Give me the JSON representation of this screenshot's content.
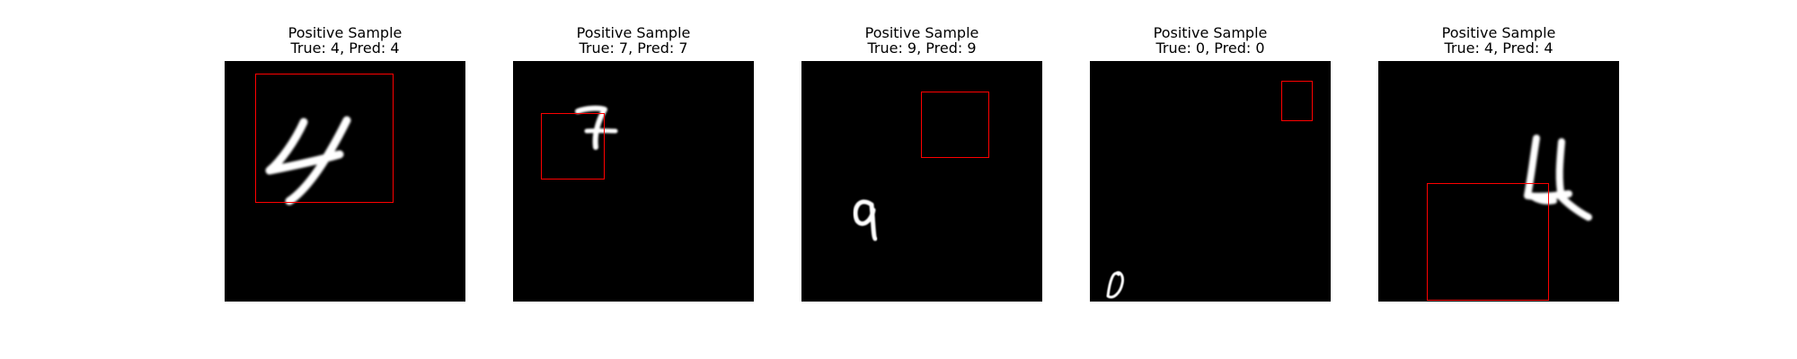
{
  "samples": [
    {
      "title": "Positive Sample",
      "subtitle": "True: 4, Pred: 4",
      "digit": "4-digit"
    },
    {
      "title": "Positive Sample",
      "subtitle": "True: 7, Pred: 7",
      "digit": "7-digit"
    },
    {
      "title": "Positive Sample",
      "subtitle": "True: 9, Pred: 9",
      "digit": "9-digit"
    },
    {
      "title": "Positive Sample",
      "subtitle": "True: 0, Pred: 0",
      "digit": "0-digit"
    },
    {
      "title": "Positive Sample",
      "subtitle": "True: 4, Pred: 4",
      "digit": "4-digit"
    }
  ],
  "colors": {
    "background": "#000000",
    "stroke": "#ffffff",
    "box": "#ff0000"
  }
}
